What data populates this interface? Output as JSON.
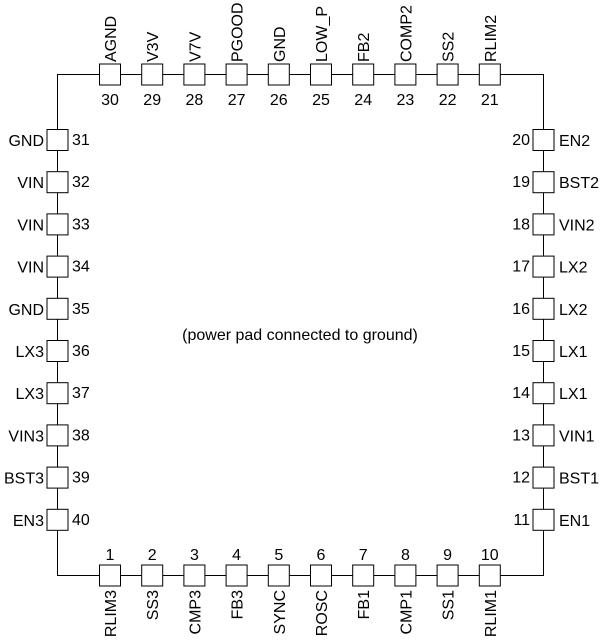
{
  "center_note": "(power pad connected to ground)",
  "pins": {
    "top": [
      {
        "num": "30",
        "name": "AGND"
      },
      {
        "num": "29",
        "name": "V3V"
      },
      {
        "num": "28",
        "name": "V7V"
      },
      {
        "num": "27",
        "name": "PGOOD"
      },
      {
        "num": "26",
        "name": "GND"
      },
      {
        "num": "25",
        "name": "LOW_P"
      },
      {
        "num": "24",
        "name": "FB2"
      },
      {
        "num": "23",
        "name": "COMP2"
      },
      {
        "num": "22",
        "name": "SS2"
      },
      {
        "num": "21",
        "name": "RLIM2"
      }
    ],
    "left": [
      {
        "num": "31",
        "name": "GND"
      },
      {
        "num": "32",
        "name": "VIN"
      },
      {
        "num": "33",
        "name": "VIN"
      },
      {
        "num": "34",
        "name": "VIN"
      },
      {
        "num": "35",
        "name": "GND"
      },
      {
        "num": "36",
        "name": "LX3"
      },
      {
        "num": "37",
        "name": "LX3"
      },
      {
        "num": "38",
        "name": "VIN3"
      },
      {
        "num": "39",
        "name": "BST3"
      },
      {
        "num": "40",
        "name": "EN3"
      }
    ],
    "right": [
      {
        "num": "20",
        "name": "EN2"
      },
      {
        "num": "19",
        "name": "BST2"
      },
      {
        "num": "18",
        "name": "VIN2"
      },
      {
        "num": "17",
        "name": "LX2"
      },
      {
        "num": "16",
        "name": "LX2"
      },
      {
        "num": "15",
        "name": "LX1"
      },
      {
        "num": "14",
        "name": "LX1"
      },
      {
        "num": "13",
        "name": "VIN1"
      },
      {
        "num": "12",
        "name": "BST1"
      },
      {
        "num": "11",
        "name": "EN1"
      }
    ],
    "bottom": [
      {
        "num": "1",
        "name": "RLIM3"
      },
      {
        "num": "2",
        "name": "SS3"
      },
      {
        "num": "3",
        "name": "CMP3"
      },
      {
        "num": "4",
        "name": "FB3"
      },
      {
        "num": "5",
        "name": "SYNC"
      },
      {
        "num": "6",
        "name": "ROSC"
      },
      {
        "num": "7",
        "name": "FB1"
      },
      {
        "num": "8",
        "name": "CMP1"
      },
      {
        "num": "9",
        "name": "SS1"
      },
      {
        "num": "10",
        "name": "RLIM1"
      }
    ]
  }
}
